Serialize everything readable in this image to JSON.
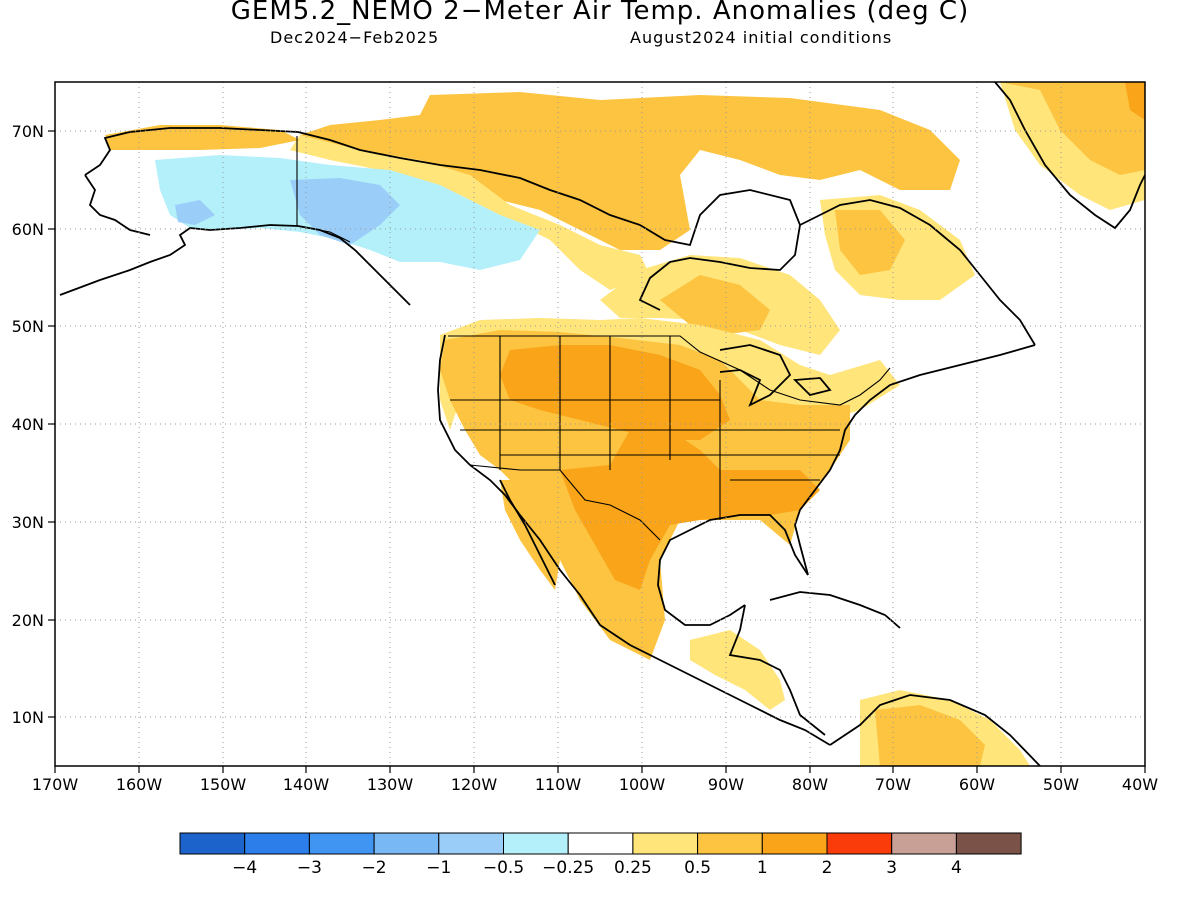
{
  "header": {
    "title": "GEM5.2_NEMO 2−Meter Air Temp. Anomalies (deg C)",
    "period": "Dec2024−Feb2025",
    "initial_conditions": "August2024 initial conditions"
  },
  "map": {
    "region": "North America",
    "lon_range": [
      -170,
      -40
    ],
    "lat_range": [
      5,
      75
    ],
    "lon_ticks": [
      "170W",
      "160W",
      "150W",
      "140W",
      "130W",
      "120W",
      "110W",
      "100W",
      "90W",
      "80W",
      "70W",
      "60W",
      "50W",
      "40W"
    ],
    "lat_ticks": [
      "10N",
      "20N",
      "30N",
      "40N",
      "50N",
      "60N",
      "70N"
    ],
    "grid": "dotted"
  },
  "colorbar": {
    "colors": [
      "#1c64cc",
      "#2c7fea",
      "#4095f2",
      "#78b8f5",
      "#9acdf8",
      "#b4f0fa",
      "#ffffff",
      "#ffe57a",
      "#fcc440",
      "#faa41a",
      "#fa3c0a",
      "#c8a096",
      "#7a5248"
    ],
    "labels": [
      "−4",
      "−3",
      "−2",
      "−1",
      "−0.5",
      "−0.25",
      "0.25",
      "0.5",
      "1",
      "2",
      "3",
      "4"
    ]
  },
  "anomaly_colors": {
    "light_warm": "#ffe57a",
    "warm": "#fcc440",
    "very_warm": "#faa41a",
    "light_cool": "#b4f0fa",
    "cool": "#9acdf8"
  }
}
